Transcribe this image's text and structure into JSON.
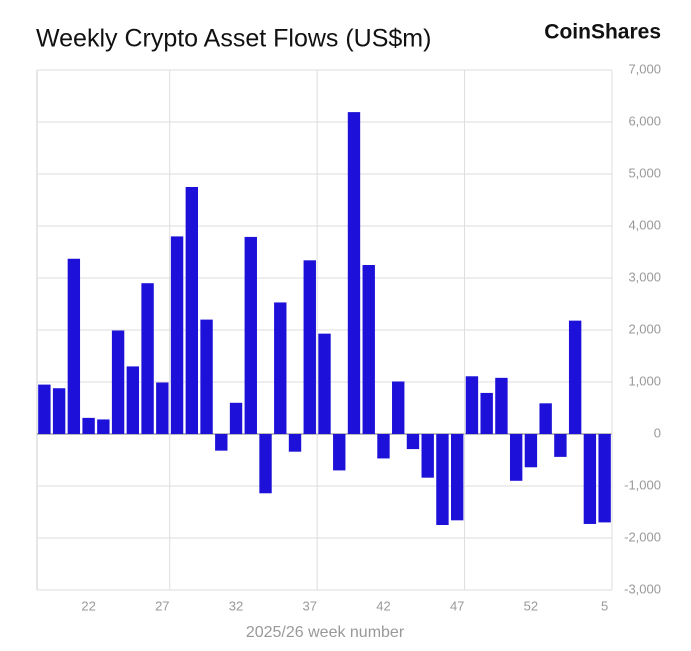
{
  "chart_data": {
    "type": "bar",
    "title": "Weekly Crypto Asset Flows (US$m)",
    "brand": "CoinShares",
    "x_label": "2025/26 week number",
    "color": "#1d10d8",
    "categories": [
      null,
      null,
      null,
      "22",
      null,
      null,
      null,
      null,
      "27",
      null,
      null,
      null,
      null,
      "32",
      null,
      null,
      null,
      null,
      "37",
      null,
      null,
      null,
      null,
      "42",
      null,
      null,
      null,
      null,
      "47",
      null,
      null,
      null,
      null,
      "52",
      null,
      null,
      null,
      null,
      "5"
    ],
    "values": [
      950,
      880,
      3370,
      310,
      280,
      1990,
      1300,
      2900,
      990,
      3800,
      4750,
      2200,
      -320,
      600,
      3790,
      -1140,
      2530,
      -340,
      3340,
      1930,
      -700,
      6190,
      3250,
      -470,
      1010,
      -290,
      -840,
      -1750,
      -1660,
      1110,
      790,
      1080,
      -900,
      -640,
      590,
      -440,
      2180,
      -1730,
      -1700
    ],
    "ylim": [
      -3000,
      7000
    ],
    "yticks": [
      {
        "value": 7000,
        "label": "7,000"
      },
      {
        "value": 6000,
        "label": "6,000"
      },
      {
        "value": 5000,
        "label": "5,000"
      },
      {
        "value": 4000,
        "label": "4,000"
      },
      {
        "value": 3000,
        "label": "3,000"
      },
      {
        "value": 2000,
        "label": "2,000"
      },
      {
        "value": 1000,
        "label": "1,000"
      },
      0,
      {
        "value": -1000,
        "label": "-1,000"
      },
      {
        "value": -2000,
        "label": "-2,000"
      },
      {
        "value": -3000,
        "label": "-3,000"
      }
    ],
    "grid": true
  }
}
